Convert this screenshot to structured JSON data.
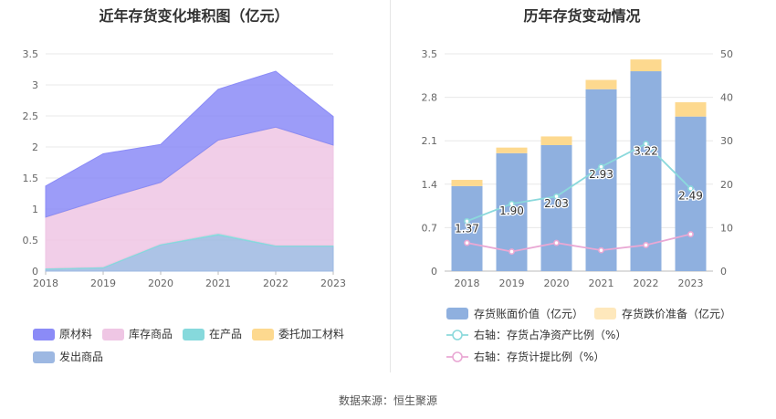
{
  "colors": {
    "raw": "#8b8bf7",
    "inventory": "#efc6e4",
    "wip": "#86d9dc",
    "consigned": "#fdd98f",
    "shipped": "#9db8e2",
    "bar_book": "#8fb0df",
    "bar_reserve": "#fdd98f",
    "line_ratio": "#8bd9dc",
    "line_provision": "#e9a8d4"
  },
  "footer": {
    "source": "数据来源：恒生聚源"
  },
  "chart_data": [
    {
      "type": "area",
      "title": "近年存货变化堆积图（亿元）",
      "x": [
        "2018",
        "2019",
        "2020",
        "2021",
        "2022",
        "2023"
      ],
      "ylim": [
        0,
        3.5
      ],
      "yticks": [
        "0",
        "0.5",
        "1",
        "1.5",
        "2",
        "2.5",
        "3",
        "3.5"
      ],
      "stacked": true,
      "series": [
        {
          "name": "发出商品",
          "key": "shipped",
          "values": [
            0.03,
            0.05,
            0.42,
            0.58,
            0.4,
            0.4
          ]
        },
        {
          "name": "在产品",
          "key": "wip",
          "values": [
            0.02,
            0.02,
            0.02,
            0.03,
            0.02,
            0.02
          ]
        },
        {
          "name": "库存商品",
          "key": "inventory",
          "values": [
            0.82,
            1.09,
            0.99,
            1.5,
            1.9,
            1.61
          ]
        },
        {
          "name": "委托加工材料",
          "key": "consigned",
          "values": [
            0.0,
            0.0,
            0.0,
            0.0,
            0.0,
            0.0
          ]
        },
        {
          "name": "原材料",
          "key": "raw",
          "values": [
            0.5,
            0.73,
            0.61,
            0.82,
            0.9,
            0.46
          ]
        }
      ],
      "legend": [
        "原材料",
        "库存商品",
        "在产品",
        "委托加工材料",
        "发出商品"
      ],
      "legend_keys": [
        "raw",
        "inventory",
        "wip",
        "consigned",
        "shipped"
      ],
      "legend_position": "bottom"
    },
    {
      "type": "bar",
      "title": "历年存货变动情况",
      "categories": [
        "2018",
        "2019",
        "2020",
        "2021",
        "2022",
        "2023"
      ],
      "ylim": [
        0,
        3.5
      ],
      "yticks": [
        "0",
        "0.7",
        "1.4",
        "2.1",
        "2.8",
        "3.5"
      ],
      "y2lim": [
        0,
        50
      ],
      "y2ticks": [
        "0",
        "10",
        "20",
        "30",
        "40",
        "50"
      ],
      "series": [
        {
          "name": "存货账面价值（亿元）",
          "values": [
            1.37,
            1.9,
            2.03,
            2.93,
            3.22,
            2.49
          ],
          "labels": [
            "1.37",
            "1.90",
            "2.03",
            "2.93",
            "3.22",
            "2.49"
          ]
        },
        {
          "name": "存货跌价准备（亿元）",
          "values": [
            0.1,
            0.09,
            0.14,
            0.15,
            0.19,
            0.23
          ]
        }
      ],
      "lines": [
        {
          "name": "右轴：存货占净资产比例（%）",
          "axis": "right",
          "values": [
            11.5,
            15.5,
            17.2,
            24.0,
            29.3,
            19.0
          ]
        },
        {
          "name": "右轴：存货计提比例（%）",
          "axis": "right",
          "values": [
            6.5,
            4.5,
            6.5,
            4.8,
            6.0,
            8.5
          ]
        }
      ],
      "legend_position": "bottom"
    }
  ]
}
